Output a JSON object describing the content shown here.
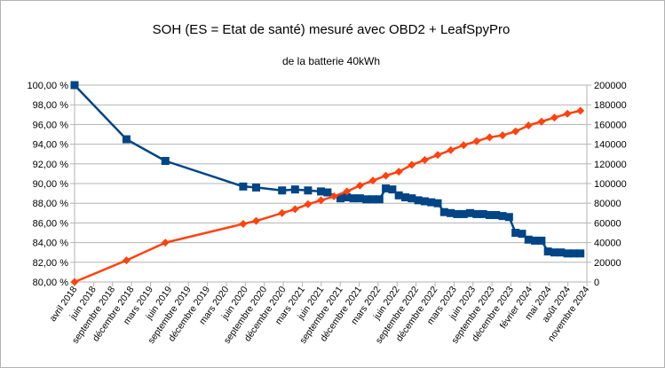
{
  "chart_data": {
    "type": "line",
    "title": "SOH (ES = Etat de santé) mesuré avec OBD2 + LeafSpyPro",
    "subtitle": "de la batterie 40kWh",
    "x_tick_labels": [
      "avril 2018",
      "juin 2018",
      "septembre 2018",
      "décembre 2018",
      "mars 2019",
      "juin 2019",
      "septembre 2019",
      "décembre 2019",
      "mars 2020",
      "juin 2020",
      "septembre 2020",
      "décembre 2020",
      "mars 2021",
      "juin 2021",
      "septembre 2021",
      "décembre 2021",
      "mars 2022",
      "juin 2022",
      "septembre 2022",
      "décembre 2022",
      "mars 2023",
      "juin 2023",
      "septembre 2023",
      "décembre 2023",
      "février 2024",
      "mai 2024",
      "août 2024",
      "novembre 2024"
    ],
    "xlim": [
      "2018-04",
      "2024-11"
    ],
    "y_left": {
      "ticks": [
        "80,00 %",
        "82,00 %",
        "84,00 %",
        "86,00 %",
        "88,00 %",
        "90,00 %",
        "92,00 %",
        "94,00 %",
        "96,00 %",
        "98,00 %",
        "100,00 %"
      ],
      "lim": [
        80,
        100
      ]
    },
    "y_right": {
      "ticks": [
        "0",
        "20000",
        "40000",
        "60000",
        "80000",
        "100000",
        "120000",
        "140000",
        "160000",
        "180000",
        "200000"
      ],
      "lim": [
        0,
        200000
      ]
    },
    "grid": true,
    "series": [
      {
        "axis": "left",
        "color": "#004586",
        "marker": "square",
        "points": [
          [
            "2018-04-01",
            100.0
          ],
          [
            "2018-12-01",
            94.5
          ],
          [
            "2019-06-01",
            92.3
          ],
          [
            "2020-06-01",
            89.7
          ],
          [
            "2020-08-01",
            89.6
          ],
          [
            "2020-12-01",
            89.3
          ],
          [
            "2021-02-01",
            89.4
          ],
          [
            "2021-04-01",
            89.3
          ],
          [
            "2021-06-01",
            89.2
          ],
          [
            "2021-07-01",
            89.1
          ],
          [
            "2021-09-01",
            88.5
          ],
          [
            "2021-10-01",
            88.6
          ],
          [
            "2021-11-01",
            88.5
          ],
          [
            "2021-12-01",
            88.5
          ],
          [
            "2022-01-01",
            88.4
          ],
          [
            "2022-02-01",
            88.4
          ],
          [
            "2022-03-01",
            88.4
          ],
          [
            "2022-04-01",
            89.5
          ],
          [
            "2022-05-01",
            89.4
          ],
          [
            "2022-06-01",
            88.8
          ],
          [
            "2022-07-01",
            88.6
          ],
          [
            "2022-08-01",
            88.5
          ],
          [
            "2022-09-01",
            88.3
          ],
          [
            "2022-10-01",
            88.2
          ],
          [
            "2022-11-01",
            88.1
          ],
          [
            "2022-12-01",
            88.0
          ],
          [
            "2023-01-01",
            87.1
          ],
          [
            "2023-02-01",
            87.0
          ],
          [
            "2023-03-01",
            86.9
          ],
          [
            "2023-04-01",
            86.9
          ],
          [
            "2023-05-01",
            87.0
          ],
          [
            "2023-06-01",
            86.9
          ],
          [
            "2023-07-01",
            86.9
          ],
          [
            "2023-08-01",
            86.8
          ],
          [
            "2023-09-01",
            86.8
          ],
          [
            "2023-10-01",
            86.7
          ],
          [
            "2023-11-01",
            86.6
          ],
          [
            "2023-12-01",
            85.0
          ],
          [
            "2024-01-01",
            84.9
          ],
          [
            "2024-02-01",
            84.3
          ],
          [
            "2024-03-01",
            84.2
          ],
          [
            "2024-04-01",
            84.2
          ],
          [
            "2024-05-01",
            83.1
          ],
          [
            "2024-06-01",
            83.0
          ],
          [
            "2024-07-01",
            83.0
          ],
          [
            "2024-08-01",
            82.9
          ],
          [
            "2024-09-01",
            82.9
          ],
          [
            "2024-10-01",
            82.9
          ]
        ]
      },
      {
        "axis": "right",
        "color": "#ff420e",
        "marker": "diamond",
        "points": [
          [
            "2018-04-01",
            0
          ],
          [
            "2018-12-01",
            22000
          ],
          [
            "2019-06-01",
            40000
          ],
          [
            "2020-06-01",
            59000
          ],
          [
            "2020-08-01",
            62000
          ],
          [
            "2020-12-01",
            70000
          ],
          [
            "2021-02-01",
            74000
          ],
          [
            "2021-04-01",
            79000
          ],
          [
            "2021-06-01",
            83000
          ],
          [
            "2021-08-01",
            87000
          ],
          [
            "2021-10-01",
            92000
          ],
          [
            "2021-12-01",
            98000
          ],
          [
            "2022-02-01",
            103000
          ],
          [
            "2022-04-01",
            108000
          ],
          [
            "2022-06-01",
            112000
          ],
          [
            "2022-08-01",
            119000
          ],
          [
            "2022-10-01",
            124000
          ],
          [
            "2022-12-01",
            129000
          ],
          [
            "2023-02-01",
            134000
          ],
          [
            "2023-04-01",
            139000
          ],
          [
            "2023-06-01",
            143000
          ],
          [
            "2023-08-01",
            147000
          ],
          [
            "2023-10-01",
            149000
          ],
          [
            "2023-12-01",
            153000
          ],
          [
            "2024-02-01",
            159000
          ],
          [
            "2024-04-01",
            163000
          ],
          [
            "2024-06-01",
            167000
          ],
          [
            "2024-08-01",
            171000
          ],
          [
            "2024-10-01",
            174000
          ]
        ]
      }
    ]
  }
}
